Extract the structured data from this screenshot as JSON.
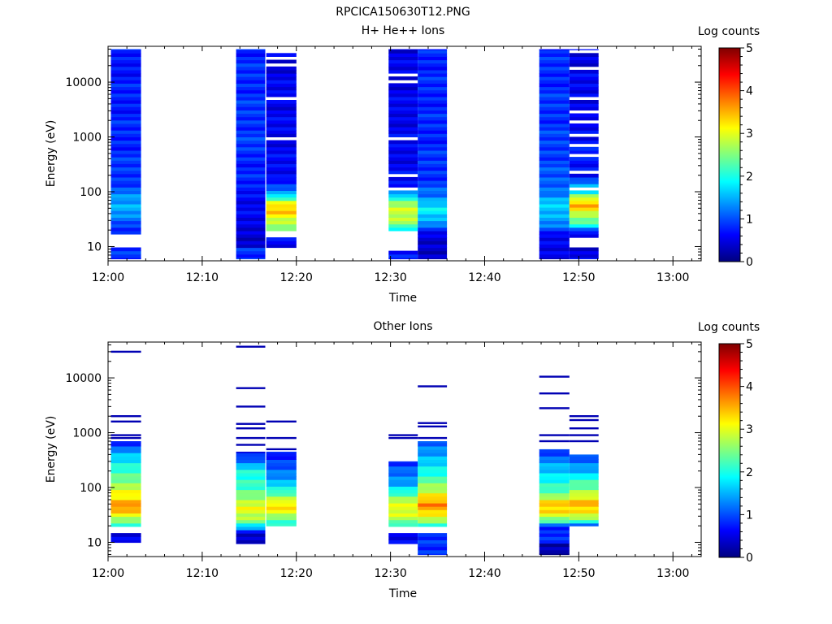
{
  "figure_title": "RPCICA150630T12.PNG",
  "chart_data": [
    {
      "type": "heatmap",
      "title": "H+ He++ Ions",
      "xlabel": "Time",
      "ylabel": "Energy (eV)",
      "yscale": "log",
      "ylim": [
        5.5,
        45000
      ],
      "xlim_minutes": [
        0,
        63
      ],
      "x_ticks": [
        {
          "label": "12:00",
          "minute": 0
        },
        {
          "label": "12:10",
          "minute": 10
        },
        {
          "label": "12:20",
          "minute": 20
        },
        {
          "label": "12:30",
          "minute": 30
        },
        {
          "label": "12:40",
          "minute": 40
        },
        {
          "label": "12:50",
          "minute": 50
        },
        {
          "label": "13:00",
          "minute": 60
        }
      ],
      "y_ticks": [
        {
          "label": "10",
          "value": 10
        },
        {
          "label": "100",
          "value": 100
        },
        {
          "label": "1000",
          "value": 1000
        },
        {
          "label": "10000",
          "value": 10000
        }
      ],
      "colorbar": {
        "label": "Log counts",
        "range": [
          0,
          5
        ],
        "ticks": [
          "0",
          "1",
          "2",
          "3",
          "4",
          "5"
        ]
      },
      "strips": [
        {
          "start_min": 0.3,
          "end_min": 3.5,
          "emin": 6,
          "emax": 40000,
          "profile": [
            [
              6,
              0.9
            ],
            [
              10,
              0.9
            ],
            [
              10.5,
              -1
            ],
            [
              15,
              -1
            ],
            [
              16,
              0.5
            ],
            [
              25,
              1.0
            ],
            [
              35,
              1.3
            ],
            [
              50,
              1.5
            ],
            [
              80,
              1.3
            ],
            [
              150,
              0.9
            ],
            [
              1000,
              0.8
            ],
            [
              40000,
              0.7
            ]
          ],
          "gaps": []
        },
        {
          "start_min": 13.6,
          "end_min": 16.7,
          "emin": 6,
          "emax": 40000,
          "profile": [
            [
              6,
              0.8
            ],
            [
              9,
              0.8
            ],
            [
              10,
              0.4
            ],
            [
              30,
              0.5
            ],
            [
              60,
              0.6
            ],
            [
              100,
              0.7
            ],
            [
              300,
              0.8
            ],
            [
              1000,
              0.9
            ],
            [
              40000,
              0.8
            ]
          ],
          "gaps": []
        },
        {
          "start_min": 16.8,
          "end_min": 20.0,
          "emin": 6,
          "emax": 40000,
          "profile": [
            [
              10,
              0.6
            ],
            [
              15,
              0.6
            ],
            [
              20,
              2.2
            ],
            [
              25,
              2.7
            ],
            [
              35,
              3.1
            ],
            [
              45,
              3.5
            ],
            [
              60,
              3.2
            ],
            [
              80,
              2.0
            ],
            [
              100,
              1.2
            ],
            [
              200,
              0.6
            ],
            [
              40000,
              0.5
            ]
          ],
          "gaps": [
            [
              6,
              10
            ],
            [
              15.5,
              20
            ],
            [
              115,
              125
            ],
            [
              420,
              460
            ],
            [
              900,
              950
            ],
            [
              1350,
              1400
            ],
            [
              1900,
              2050
            ],
            [
              5000,
              5300
            ],
            [
              8000,
              8500
            ],
            [
              14000,
              15000
            ],
            [
              20000,
              21500
            ],
            [
              26000,
              28000
            ],
            [
              34000,
              40000
            ]
          ]
        },
        {
          "start_min": 29.8,
          "end_min": 32.9,
          "emin": 6,
          "emax": 40000,
          "profile": [
            [
              6,
              0.7
            ],
            [
              9,
              0.7
            ],
            [
              18,
              1.5
            ],
            [
              22,
              1.8
            ],
            [
              25,
              2.6
            ],
            [
              35,
              2.8
            ],
            [
              50,
              2.8
            ],
            [
              70,
              2.5
            ],
            [
              90,
              1.5
            ],
            [
              120,
              0.6
            ],
            [
              40000,
              0.5
            ]
          ],
          "gaps": [
            [
              9,
              20
            ],
            [
              105,
              120
            ],
            [
              180,
              220
            ],
            [
              430,
              460
            ],
            [
              900,
              1000
            ],
            [
              1700,
              1850
            ],
            [
              4000,
              4300
            ],
            [
              6000,
              6400
            ],
            [
              10000,
              10600
            ],
            [
              13000,
              14500
            ],
            [
              21000,
              22500
            ],
            [
              30000,
              31500
            ]
          ]
        },
        {
          "start_min": 32.9,
          "end_min": 36.0,
          "emin": 6,
          "emax": 40000,
          "profile": [
            [
              6,
              0.4
            ],
            [
              15,
              0.4
            ],
            [
              20,
              0.7
            ],
            [
              30,
              1.5
            ],
            [
              45,
              1.9
            ],
            [
              60,
              1.7
            ],
            [
              80,
              1.2
            ],
            [
              150,
              0.9
            ],
            [
              1000,
              0.8
            ],
            [
              40000,
              0.8
            ]
          ],
          "gaps": []
        },
        {
          "start_min": 45.8,
          "end_min": 49.0,
          "emin": 6,
          "emax": 40000,
          "profile": [
            [
              6,
              0.5
            ],
            [
              15,
              0.5
            ],
            [
              25,
              1.3
            ],
            [
              40,
              1.5
            ],
            [
              70,
              1.6
            ],
            [
              100,
              1.2
            ],
            [
              200,
              1.0
            ],
            [
              1000,
              0.9
            ],
            [
              40000,
              0.8
            ]
          ],
          "gaps": []
        },
        {
          "start_min": 49.0,
          "end_min": 52.1,
          "emin": 6,
          "emax": 40000,
          "profile": [
            [
              6,
              0.5
            ],
            [
              18,
              0.5
            ],
            [
              25,
              2.0
            ],
            [
              35,
              2.6
            ],
            [
              50,
              3.4
            ],
            [
              60,
              3.6
            ],
            [
              80,
              2.8
            ],
            [
              100,
              1.8
            ],
            [
              200,
              0.7
            ],
            [
              40000,
              0.5
            ]
          ],
          "gaps": [
            [
              10,
              14
            ],
            [
              100,
              130
            ],
            [
              200,
              230
            ],
            [
              460,
              520
            ],
            [
              700,
              760
            ],
            [
              1000,
              1200
            ],
            [
              1700,
              1900
            ],
            [
              2800,
              3000
            ],
            [
              5000,
              5400
            ],
            [
              8000,
              8500
            ],
            [
              12000,
              12500
            ],
            [
              18000,
              19500
            ],
            [
              28000,
              30000
            ],
            [
              35000,
              37000
            ]
          ]
        }
      ]
    },
    {
      "type": "heatmap",
      "title": "Other Ions",
      "xlabel": "Time",
      "ylabel": "Energy (eV)",
      "yscale": "log",
      "ylim": [
        5.5,
        45000
      ],
      "xlim_minutes": [
        0,
        63
      ],
      "x_ticks": [
        {
          "label": "12:00",
          "minute": 0
        },
        {
          "label": "12:10",
          "minute": 10
        },
        {
          "label": "12:20",
          "minute": 20
        },
        {
          "label": "12:30",
          "minute": 30
        },
        {
          "label": "12:40",
          "minute": 40
        },
        {
          "label": "12:50",
          "minute": 50
        },
        {
          "label": "13:00",
          "minute": 60
        }
      ],
      "y_ticks": [
        {
          "label": "10",
          "value": 10
        },
        {
          "label": "100",
          "value": 100
        },
        {
          "label": "1000",
          "value": 1000
        },
        {
          "label": "10000",
          "value": 10000
        }
      ],
      "colorbar": {
        "label": "Log counts",
        "range": [
          0,
          5
        ],
        "ticks": [
          "0",
          "1",
          "2",
          "3",
          "4",
          "5"
        ]
      },
      "strips": [
        {
          "start_min": 0.3,
          "end_min": 3.5,
          "emin": 10,
          "emax": 700,
          "profile": [
            [
              10,
              0.5
            ],
            [
              14,
              0.5
            ],
            [
              20,
              2.0
            ],
            [
              25,
              2.6
            ],
            [
              35,
              3.3
            ],
            [
              45,
              3.8
            ],
            [
              60,
              3.3
            ],
            [
              100,
              2.8
            ],
            [
              200,
              2.2
            ],
            [
              400,
              1.5
            ],
            [
              700,
              0.8
            ]
          ],
          "gaps": [
            [
              14,
              20
            ]
          ],
          "lines": [
            30000,
            2000,
            1600,
            900,
            800
          ]
        },
        {
          "start_min": 13.6,
          "end_min": 16.7,
          "emin": 9.5,
          "emax": 450,
          "profile": [
            [
              9.5,
              0.3
            ],
            [
              15,
              0.5
            ],
            [
              20,
              1.8
            ],
            [
              25,
              2.6
            ],
            [
              40,
              3.0
            ],
            [
              60,
              2.8
            ],
            [
              100,
              2.2
            ],
            [
              200,
              1.9
            ],
            [
              300,
              1.3
            ],
            [
              450,
              0.6
            ]
          ],
          "gaps": [],
          "lines": [
            37000,
            6500,
            3000,
            1450,
            1200,
            800,
            600
          ]
        },
        {
          "start_min": 16.8,
          "end_min": 20.0,
          "emin": 20,
          "emax": 450,
          "profile": [
            [
              20,
              1.8
            ],
            [
              25,
              2.2
            ],
            [
              35,
              3.1
            ],
            [
              50,
              3.3
            ],
            [
              70,
              2.5
            ],
            [
              100,
              1.8
            ],
            [
              200,
              1.2
            ],
            [
              450,
              0.6
            ]
          ],
          "gaps": [],
          "lines": [
            1600,
            800,
            500
          ]
        },
        {
          "start_min": 29.8,
          "end_min": 32.9,
          "emin": 9.5,
          "emax": 300,
          "profile": [
            [
              9.5,
              0.5
            ],
            [
              14,
              0.5
            ],
            [
              20,
              1.9
            ],
            [
              25,
              2.6
            ],
            [
              35,
              3.0
            ],
            [
              60,
              2.8
            ],
            [
              80,
              2.2
            ],
            [
              120,
              1.4
            ],
            [
              200,
              1.1
            ],
            [
              300,
              0.7
            ]
          ],
          "gaps": [
            [
              14,
              20
            ]
          ],
          "lines": [
            900,
            800
          ]
        },
        {
          "start_min": 32.9,
          "end_min": 36.0,
          "emin": 6,
          "emax": 700,
          "profile": [
            [
              6,
              0.9
            ],
            [
              14,
              0.9
            ],
            [
              20,
              1.8
            ],
            [
              25,
              2.6
            ],
            [
              35,
              3.4
            ],
            [
              50,
              3.8
            ],
            [
              70,
              3.2
            ],
            [
              100,
              2.6
            ],
            [
              200,
              2.0
            ],
            [
              400,
              1.4
            ],
            [
              700,
              1.0
            ]
          ],
          "gaps": [
            [
              14.5,
              20
            ]
          ],
          "lines": [
            7000,
            1500,
            1300,
            800
          ]
        },
        {
          "start_min": 45.8,
          "end_min": 49.0,
          "emin": 6,
          "emax": 500,
          "profile": [
            [
              6,
              0.2
            ],
            [
              9,
              0.2
            ],
            [
              10,
              0.7
            ],
            [
              20,
              0.9
            ],
            [
              25,
              2.4
            ],
            [
              35,
              3.2
            ],
            [
              50,
              3.4
            ],
            [
              70,
              2.6
            ],
            [
              100,
              2.2
            ],
            [
              200,
              1.6
            ],
            [
              500,
              0.9
            ]
          ],
          "gaps": [],
          "lines": [
            10500,
            5200,
            2800,
            900,
            700
          ]
        },
        {
          "start_min": 49.0,
          "end_min": 52.1,
          "emin": 20,
          "emax": 400,
          "profile": [
            [
              20,
              0.9
            ],
            [
              25,
              2.2
            ],
            [
              35,
              3.2
            ],
            [
              50,
              3.6
            ],
            [
              70,
              3.0
            ],
            [
              100,
              2.4
            ],
            [
              200,
              1.6
            ],
            [
              400,
              0.9
            ]
          ],
          "gaps": [],
          "lines": [
            2000,
            1700,
            1200,
            900,
            700
          ]
        }
      ]
    }
  ]
}
